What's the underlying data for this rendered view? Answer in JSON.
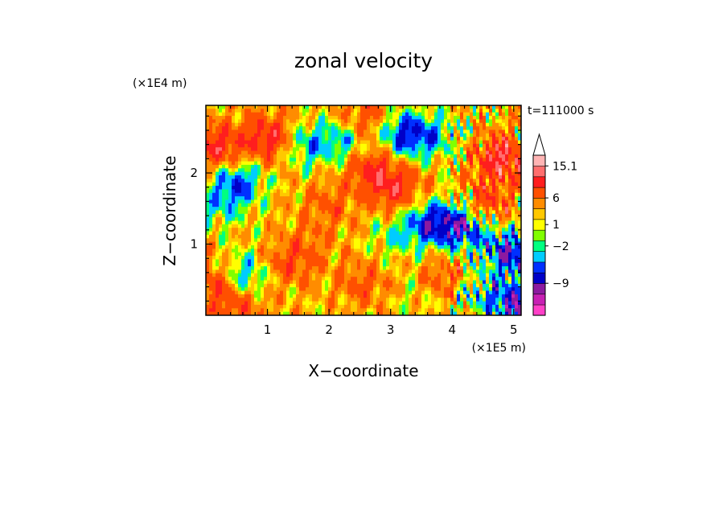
{
  "chart_data": {
    "type": "heatmap",
    "title": "zonal velocity",
    "xlabel": "X−coordinate",
    "ylabel": "Z−coordinate",
    "x_unit": "(×1E5 m)",
    "y_unit": "(×1E4 m)",
    "time_label": "t=111000 s",
    "xlim": [
      0.0,
      5.12
    ],
    "ylim": [
      0.0,
      2.95
    ],
    "x_ticks": [
      "1",
      "2",
      "3",
      "4",
      "5"
    ],
    "y_ticks": [
      "1",
      "2"
    ],
    "colorbar": {
      "labels": [
        "15.1",
        "6",
        "1",
        "−2",
        "−9"
      ],
      "colors": [
        "#ff40c8",
        "#c820b4",
        "#8c1aa0",
        "#0000c8",
        "#0030ff",
        "#00ccff",
        "#00ff80",
        "#80ff00",
        "#ffff00",
        "#ffc800",
        "#ff8c00",
        "#ff5000",
        "#ff1e1e",
        "#ff6e6e",
        "#ffb4b4",
        "#ffffff"
      ],
      "extend_max": true
    },
    "pattern_note": "",
    "field_features": [
      {
        "x": 1.6,
        "z": 0.95,
        "value": 2.5
      },
      {
        "x": 1.3,
        "z": 0.7,
        "value": 3.0
      },
      {
        "x": 0.2,
        "z": 2.35,
        "value": 6.5
      },
      {
        "x": 0.5,
        "z": 1.85,
        "value": -7.0
      },
      {
        "x": 1.05,
        "z": 2.5,
        "value": 7.0
      },
      {
        "x": 1.6,
        "z": 2.4,
        "value": -5.0
      },
      {
        "x": 2.25,
        "z": 2.45,
        "value": -4.5
      },
      {
        "x": 3.2,
        "z": 2.55,
        "value": -7.5
      },
      {
        "x": 3.7,
        "z": 2.5,
        "value": -4.0
      },
      {
        "x": 2.7,
        "z": 2.05,
        "value": 6.0
      },
      {
        "x": 3.1,
        "z": 1.75,
        "value": 5.5
      },
      {
        "x": 3.05,
        "z": 1.1,
        "value": -2.5
      },
      {
        "x": 3.6,
        "z": 1.3,
        "value": -7.0
      },
      {
        "x": 4.15,
        "z": 1.25,
        "value": -9.0
      },
      {
        "x": 4.8,
        "z": 2.2,
        "value": 8.0
      },
      {
        "x": 4.55,
        "z": 1.55,
        "value": 5.0
      },
      {
        "x": 4.95,
        "z": 0.9,
        "value": -9.0
      },
      {
        "x": 3.9,
        "z": 0.5,
        "value": 4.5
      },
      {
        "x": 2.55,
        "z": 0.45,
        "value": 3.5
      },
      {
        "x": 0.15,
        "z": 0.45,
        "value": 5.5
      },
      {
        "x": 0.55,
        "z": 0.1,
        "value": 4.0
      },
      {
        "x": 0.6,
        "z": 0.55,
        "value": -6.0
      },
      {
        "x": 4.35,
        "z": 0.35,
        "value": -4.0
      },
      {
        "x": 2.0,
        "z": 1.55,
        "value": 3.0
      },
      {
        "x": 5.05,
        "z": 0.15,
        "value": -10.0
      },
      {
        "x": 2.6,
        "z": 2.75,
        "value": 4.5
      },
      {
        "x": 0.15,
        "z": 1.5,
        "value": -3.0
      },
      {
        "x": 3.45,
        "z": 0.3,
        "value": -1.5
      }
    ]
  }
}
